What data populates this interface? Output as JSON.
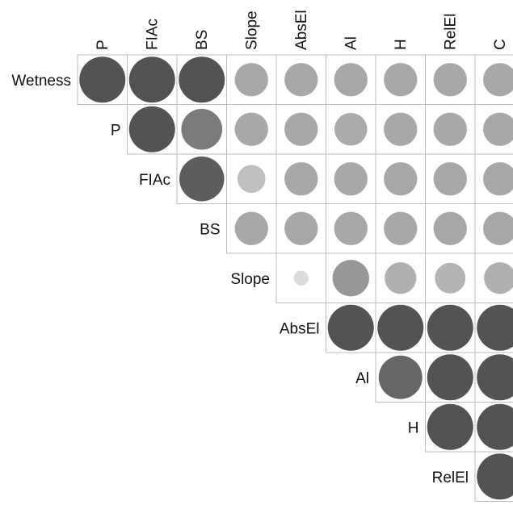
{
  "chart_data": {
    "type": "heatmap",
    "subtype": "correlogram-upper-triangle",
    "title": "",
    "columns": [
      "P",
      "FIAc",
      "BS",
      "Slope",
      "AbsEl",
      "Al",
      "H",
      "RelEl",
      "C"
    ],
    "rows": [
      "Wetness",
      "P",
      "FIAc",
      "BS",
      "Slope",
      "AbsEl",
      "Al",
      "H",
      "RelEl"
    ],
    "values": [
      [
        0.95,
        0.95,
        0.95,
        0.5,
        0.5,
        0.5,
        0.5,
        0.5,
        0.5
      ],
      [
        null,
        0.95,
        0.75,
        0.5,
        0.5,
        0.48,
        0.5,
        0.5,
        0.5
      ],
      [
        null,
        null,
        0.9,
        0.35,
        0.5,
        0.5,
        0.5,
        0.5,
        0.5
      ],
      [
        null,
        null,
        null,
        0.5,
        0.5,
        0.5,
        0.5,
        0.5,
        0.5
      ],
      [
        null,
        null,
        null,
        null,
        0.1,
        0.6,
        0.45,
        0.42,
        0.45
      ],
      [
        null,
        null,
        null,
        null,
        null,
        0.95,
        0.95,
        0.95,
        0.95
      ],
      [
        null,
        null,
        null,
        null,
        null,
        null,
        0.85,
        0.95,
        0.95
      ],
      [
        null,
        null,
        null,
        null,
        null,
        null,
        null,
        0.95,
        0.95
      ],
      [
        null,
        null,
        null,
        null,
        null,
        null,
        null,
        null,
        0.95
      ]
    ],
    "legend": "none",
    "grid": true
  }
}
